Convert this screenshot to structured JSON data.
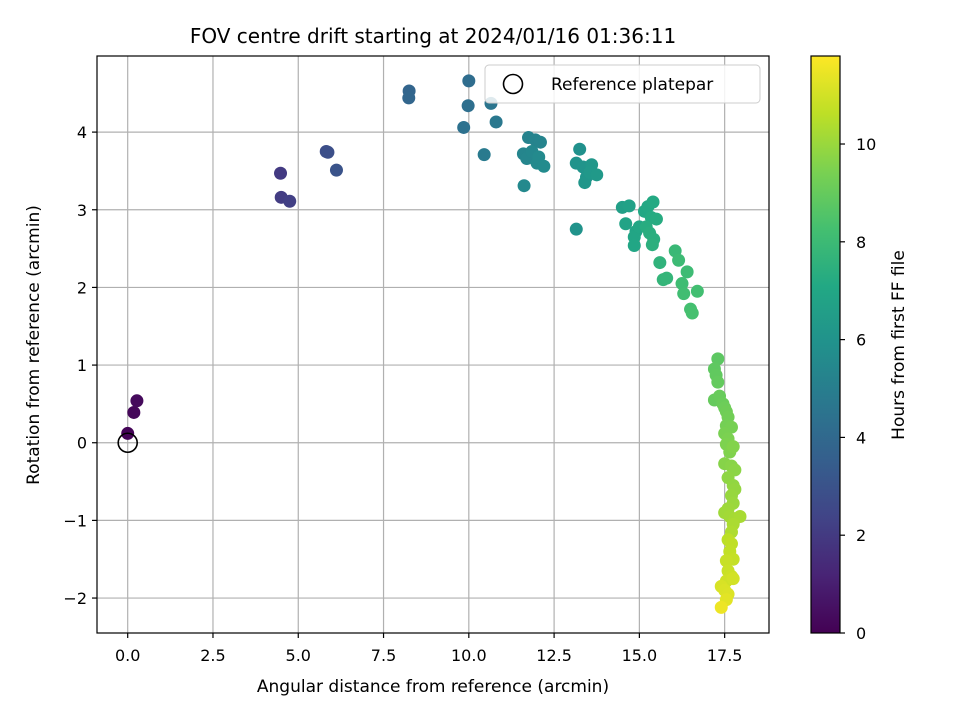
{
  "chart_data": {
    "type": "scatter",
    "title": "FOV centre drift starting at 2024/01/16 01:36:11",
    "xlabel": "Angular distance from reference (arcmin)",
    "ylabel": "Rotation from reference (arcmin)",
    "xlim": [
      -0.9,
      18.8
    ],
    "ylim": [
      -2.45,
      4.98
    ],
    "x_ticks": [
      0.0,
      2.5,
      5.0,
      7.5,
      10.0,
      12.5,
      15.0,
      17.5
    ],
    "x_tick_labels": [
      "0.0",
      "2.5",
      "5.0",
      "7.5",
      "10.0",
      "12.5",
      "15.0",
      "17.5"
    ],
    "y_ticks": [
      -2,
      -1,
      0,
      1,
      2,
      3,
      4
    ],
    "y_tick_labels": [
      "−2",
      "−1",
      "0",
      "1",
      "2",
      "3",
      "4"
    ],
    "grid": true,
    "colormap": "viridis",
    "colorbar": {
      "label": "Hours from first FF file",
      "range": [
        0,
        11.8
      ],
      "ticks": [
        0,
        2,
        4,
        6,
        8,
        10
      ],
      "tick_labels": [
        "0",
        "2",
        "4",
        "6",
        "8",
        "10"
      ]
    },
    "legend": {
      "position": "top-right",
      "entries": [
        {
          "label": "Reference platepar",
          "marker": "open-circle"
        }
      ]
    },
    "reference_point": {
      "x": 0.0,
      "y": 0.0
    },
    "points": [
      {
        "x": 0.0,
        "y": 0.12,
        "c": 0.1
      },
      {
        "x": 0.18,
        "y": 0.39,
        "c": 0.2
      },
      {
        "x": 0.27,
        "y": 0.54,
        "c": 0.3
      },
      {
        "x": 4.48,
        "y": 3.47,
        "c": 2.0
      },
      {
        "x": 4.5,
        "y": 3.16,
        "c": 2.1
      },
      {
        "x": 4.75,
        "y": 3.11,
        "c": 2.2
      },
      {
        "x": 5.82,
        "y": 3.75,
        "c": 2.8
      },
      {
        "x": 5.87,
        "y": 3.74,
        "c": 2.85
      },
      {
        "x": 6.12,
        "y": 3.51,
        "c": 3.0
      },
      {
        "x": 8.25,
        "y": 4.53,
        "c": 3.8
      },
      {
        "x": 8.24,
        "y": 4.44,
        "c": 3.85
      },
      {
        "x": 10.0,
        "y": 4.66,
        "c": 4.2
      },
      {
        "x": 9.98,
        "y": 4.34,
        "c": 4.3
      },
      {
        "x": 9.85,
        "y": 4.06,
        "c": 4.4
      },
      {
        "x": 10.65,
        "y": 4.37,
        "c": 4.6
      },
      {
        "x": 10.8,
        "y": 4.13,
        "c": 4.7
      },
      {
        "x": 10.45,
        "y": 3.71,
        "c": 4.8
      },
      {
        "x": 11.75,
        "y": 3.93,
        "c": 5.2
      },
      {
        "x": 11.95,
        "y": 3.9,
        "c": 5.25
      },
      {
        "x": 12.1,
        "y": 3.87,
        "c": 5.3
      },
      {
        "x": 11.6,
        "y": 3.72,
        "c": 5.35
      },
      {
        "x": 11.7,
        "y": 3.66,
        "c": 5.4
      },
      {
        "x": 11.85,
        "y": 3.75,
        "c": 5.45
      },
      {
        "x": 12.0,
        "y": 3.6,
        "c": 5.5
      },
      {
        "x": 12.05,
        "y": 3.68,
        "c": 5.55
      },
      {
        "x": 12.2,
        "y": 3.56,
        "c": 5.6
      },
      {
        "x": 11.62,
        "y": 3.31,
        "c": 5.5
      },
      {
        "x": 13.25,
        "y": 3.78,
        "c": 5.9
      },
      {
        "x": 13.15,
        "y": 3.6,
        "c": 6.0
      },
      {
        "x": 13.35,
        "y": 3.55,
        "c": 6.05
      },
      {
        "x": 13.45,
        "y": 3.42,
        "c": 6.1
      },
      {
        "x": 13.4,
        "y": 3.35,
        "c": 6.15
      },
      {
        "x": 13.6,
        "y": 3.58,
        "c": 6.2
      },
      {
        "x": 13.55,
        "y": 3.48,
        "c": 6.25
      },
      {
        "x": 13.75,
        "y": 3.45,
        "c": 6.3
      },
      {
        "x": 13.15,
        "y": 2.75,
        "c": 6.0
      },
      {
        "x": 14.5,
        "y": 3.03,
        "c": 6.6
      },
      {
        "x": 14.7,
        "y": 3.05,
        "c": 6.7
      },
      {
        "x": 14.6,
        "y": 2.82,
        "c": 6.8
      },
      {
        "x": 14.9,
        "y": 2.72,
        "c": 6.9
      },
      {
        "x": 14.85,
        "y": 2.65,
        "c": 6.95
      },
      {
        "x": 15.0,
        "y": 2.78,
        "c": 7.0
      },
      {
        "x": 15.15,
        "y": 2.98,
        "c": 7.05
      },
      {
        "x": 15.25,
        "y": 3.04,
        "c": 7.1
      },
      {
        "x": 15.4,
        "y": 3.1,
        "c": 7.15
      },
      {
        "x": 15.35,
        "y": 2.9,
        "c": 7.2
      },
      {
        "x": 15.5,
        "y": 2.88,
        "c": 7.25
      },
      {
        "x": 15.2,
        "y": 2.78,
        "c": 7.3
      },
      {
        "x": 15.3,
        "y": 2.7,
        "c": 7.35
      },
      {
        "x": 15.42,
        "y": 2.62,
        "c": 7.4
      },
      {
        "x": 15.38,
        "y": 2.55,
        "c": 7.45
      },
      {
        "x": 14.85,
        "y": 2.54,
        "c": 7.0
      },
      {
        "x": 15.6,
        "y": 2.32,
        "c": 7.6
      },
      {
        "x": 15.7,
        "y": 2.1,
        "c": 7.7
      },
      {
        "x": 15.8,
        "y": 2.12,
        "c": 7.75
      },
      {
        "x": 16.05,
        "y": 2.47,
        "c": 7.9
      },
      {
        "x": 16.15,
        "y": 2.35,
        "c": 8.0
      },
      {
        "x": 16.4,
        "y": 2.2,
        "c": 8.05
      },
      {
        "x": 16.25,
        "y": 2.05,
        "c": 8.1
      },
      {
        "x": 16.3,
        "y": 1.92,
        "c": 8.15
      },
      {
        "x": 16.7,
        "y": 1.95,
        "c": 8.2
      },
      {
        "x": 16.5,
        "y": 1.72,
        "c": 8.25
      },
      {
        "x": 16.55,
        "y": 1.67,
        "c": 8.3
      },
      {
        "x": 17.3,
        "y": 1.08,
        "c": 8.8
      },
      {
        "x": 17.2,
        "y": 0.95,
        "c": 8.85
      },
      {
        "x": 17.25,
        "y": 0.87,
        "c": 8.9
      },
      {
        "x": 17.3,
        "y": 0.78,
        "c": 8.95
      },
      {
        "x": 17.2,
        "y": 0.55,
        "c": 9.0
      },
      {
        "x": 17.35,
        "y": 0.6,
        "c": 9.05
      },
      {
        "x": 17.45,
        "y": 0.5,
        "c": 9.1
      },
      {
        "x": 17.5,
        "y": 0.45,
        "c": 9.15
      },
      {
        "x": 17.55,
        "y": 0.4,
        "c": 9.2
      },
      {
        "x": 17.6,
        "y": 0.33,
        "c": 9.25
      },
      {
        "x": 17.55,
        "y": 0.22,
        "c": 9.3
      },
      {
        "x": 17.7,
        "y": 0.2,
        "c": 9.35
      },
      {
        "x": 17.5,
        "y": 0.12,
        "c": 9.4
      },
      {
        "x": 17.6,
        "y": 0.05,
        "c": 9.45
      },
      {
        "x": 17.55,
        "y": -0.02,
        "c": 9.5
      },
      {
        "x": 17.65,
        "y": -0.12,
        "c": 9.55
      },
      {
        "x": 17.75,
        "y": -0.05,
        "c": 9.6
      },
      {
        "x": 17.5,
        "y": -0.27,
        "c": 9.65
      },
      {
        "x": 17.7,
        "y": -0.3,
        "c": 9.7
      },
      {
        "x": 17.8,
        "y": -0.35,
        "c": 9.75
      },
      {
        "x": 17.6,
        "y": -0.45,
        "c": 9.8
      },
      {
        "x": 17.75,
        "y": -0.55,
        "c": 9.85
      },
      {
        "x": 17.8,
        "y": -0.6,
        "c": 9.9
      },
      {
        "x": 17.7,
        "y": -0.68,
        "c": 9.95
      },
      {
        "x": 17.75,
        "y": -0.78,
        "c": 10.0
      },
      {
        "x": 17.6,
        "y": -0.85,
        "c": 10.05
      },
      {
        "x": 17.5,
        "y": -0.9,
        "c": 10.1
      },
      {
        "x": 17.65,
        "y": -0.95,
        "c": 10.15
      },
      {
        "x": 17.8,
        "y": -0.98,
        "c": 10.2
      },
      {
        "x": 17.95,
        "y": -0.95,
        "c": 10.25
      },
      {
        "x": 17.75,
        "y": -1.05,
        "c": 10.3
      },
      {
        "x": 17.7,
        "y": -1.15,
        "c": 10.35
      },
      {
        "x": 17.6,
        "y": -1.25,
        "c": 10.6
      },
      {
        "x": 17.7,
        "y": -1.3,
        "c": 10.65
      },
      {
        "x": 17.65,
        "y": -1.4,
        "c": 10.7
      },
      {
        "x": 17.75,
        "y": -1.5,
        "c": 10.75
      },
      {
        "x": 17.55,
        "y": -1.52,
        "c": 10.8
      },
      {
        "x": 17.6,
        "y": -1.65,
        "c": 10.85
      },
      {
        "x": 17.7,
        "y": -1.72,
        "c": 10.9
      },
      {
        "x": 17.55,
        "y": -1.78,
        "c": 10.95
      },
      {
        "x": 17.75,
        "y": -1.75,
        "c": 11.0
      },
      {
        "x": 17.4,
        "y": -1.85,
        "c": 11.1
      },
      {
        "x": 17.5,
        "y": -1.9,
        "c": 11.15
      },
      {
        "x": 17.6,
        "y": -1.95,
        "c": 11.2
      },
      {
        "x": 17.55,
        "y": -2.02,
        "c": 11.3
      },
      {
        "x": 17.4,
        "y": -2.12,
        "c": 11.5
      }
    ]
  }
}
